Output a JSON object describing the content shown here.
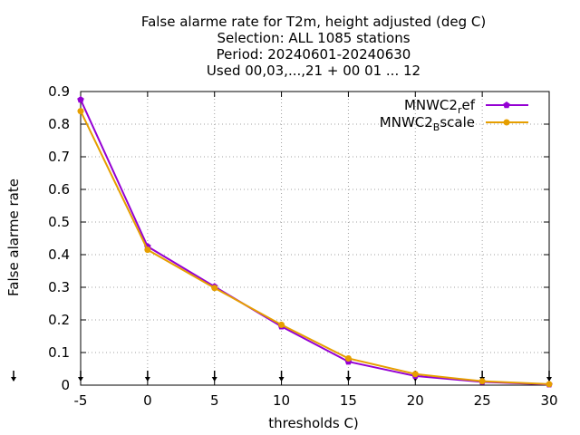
{
  "chart_data": {
    "type": "line",
    "title_lines": [
      "False alarme rate  for T2m, height adjusted (deg C)",
      "Selection: ALL   1085 stations",
      "Period: 20240601-20240630",
      "Used 00,03,...,21 + 00 01 ... 12"
    ],
    "xlabel": "thresholds C)",
    "ylabel": "False alarme rate",
    "xlim": [
      -5,
      30
    ],
    "ylim": [
      0,
      0.9
    ],
    "x_ticks": [
      -5,
      0,
      5,
      10,
      15,
      20,
      25,
      30
    ],
    "y_ticks": [
      0,
      0.1,
      0.2,
      0.3,
      0.4,
      0.5,
      0.6,
      0.7,
      0.8,
      0.9
    ],
    "x_tick_labels": [
      "-5",
      "0",
      "5",
      "10",
      "15",
      "20",
      "25",
      "30"
    ],
    "y_tick_labels": [
      "0",
      "0.1",
      "0.2",
      "0.3",
      "0.4",
      "0.5",
      "0.6",
      "0.7",
      "0.8",
      "0.9"
    ],
    "grid": true,
    "legend_position": "top-right",
    "x": [
      -5,
      0,
      5,
      10,
      15,
      20,
      25,
      30
    ],
    "series": [
      {
        "name_main": "MNWC2",
        "name_sub": "r",
        "name_rest": "ef",
        "color": "#9400d3",
        "values": [
          0.875,
          0.425,
          0.302,
          0.18,
          0.072,
          0.028,
          0.01,
          0.002
        ]
      },
      {
        "name_main": "MNWC2",
        "name_sub": "B",
        "name_rest": "scale",
        "color": "#e69f00",
        "values": [
          0.84,
          0.415,
          0.298,
          0.185,
          0.082,
          0.034,
          0.012,
          0.003
        ]
      }
    ]
  }
}
